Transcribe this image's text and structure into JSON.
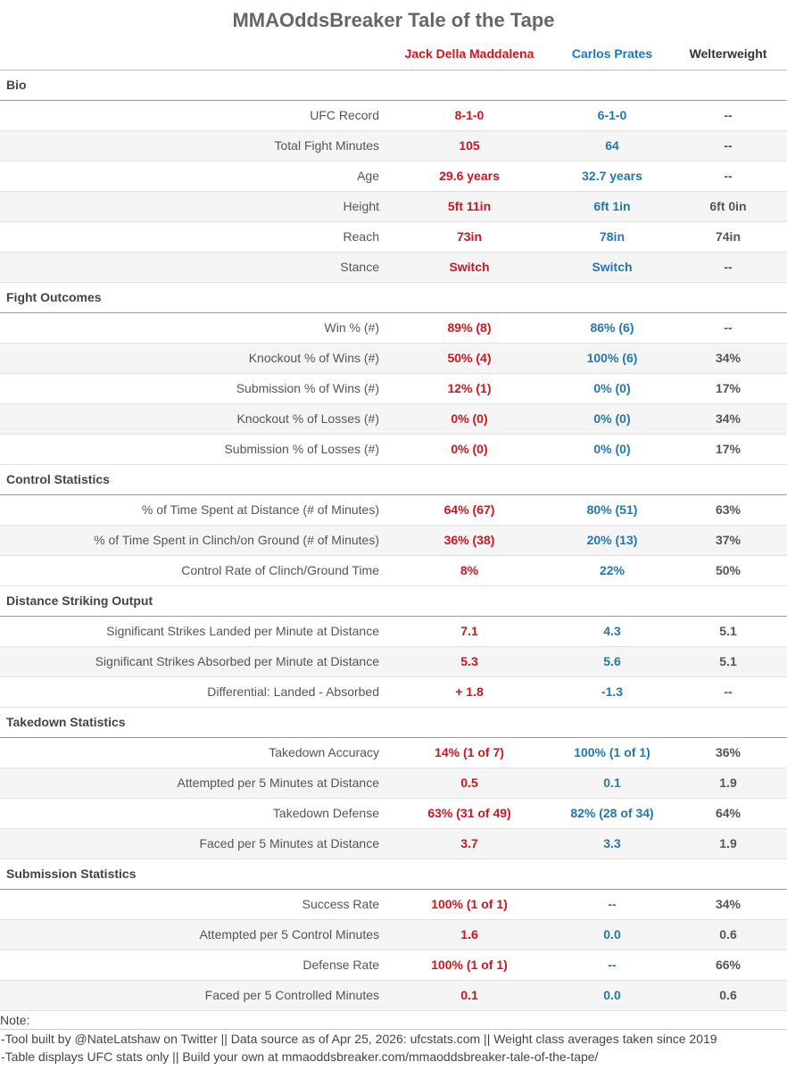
{
  "title": "MMAOddsBreaker Tale of the Tape",
  "columns": {
    "fighter1": "Jack Della Maddalena",
    "fighter2": "Carlos Prates",
    "weight_class": "Welterweight"
  },
  "colors": {
    "fighter1": "#d0161c",
    "fighter2": "#1f77b4"
  },
  "sections": [
    {
      "title": "Bio",
      "rows": [
        {
          "label": "UFC Record",
          "f1": "8-1-0",
          "f2": "6-1-0",
          "avg": "--"
        },
        {
          "label": "Total Fight Minutes",
          "f1": "105",
          "f2": "64",
          "avg": "--"
        },
        {
          "label": "Age",
          "f1": "29.6 years",
          "f2": "32.7 years",
          "avg": "--"
        },
        {
          "label": "Height",
          "f1": "5ft 11in",
          "f2": "6ft 1in",
          "avg": "6ft 0in"
        },
        {
          "label": "Reach",
          "f1": "73in",
          "f2": "78in",
          "avg": "74in"
        },
        {
          "label": "Stance",
          "f1": "Switch",
          "f2": "Switch",
          "avg": "--"
        }
      ]
    },
    {
      "title": "Fight Outcomes",
      "rows": [
        {
          "label": "Win % (#)",
          "f1": "89% (8)",
          "f2": "86% (6)",
          "avg": "--"
        },
        {
          "label": "Knockout % of Wins (#)",
          "f1": "50% (4)",
          "f2": "100% (6)",
          "avg": "34%"
        },
        {
          "label": "Submission % of Wins (#)",
          "f1": "12% (1)",
          "f2": "0% (0)",
          "avg": "17%"
        },
        {
          "label": "Knockout % of Losses (#)",
          "f1": "0% (0)",
          "f2": "0% (0)",
          "avg": "34%"
        },
        {
          "label": "Submission % of Losses (#)",
          "f1": "0% (0)",
          "f2": "0% (0)",
          "avg": "17%"
        }
      ]
    },
    {
      "title": "Control Statistics",
      "rows": [
        {
          "label": "% of Time Spent at Distance (# of Minutes)",
          "f1": "64% (67)",
          "f2": "80% (51)",
          "avg": "63%"
        },
        {
          "label": "% of Time Spent in Clinch/on Ground (# of Minutes)",
          "f1": "36% (38)",
          "f2": "20% (13)",
          "avg": "37%"
        },
        {
          "label": "Control Rate of Clinch/Ground Time",
          "f1": "8%",
          "f2": "22%",
          "avg": "50%"
        }
      ]
    },
    {
      "title": "Distance Striking Output",
      "rows": [
        {
          "label": "Significant Strikes Landed per Minute at Distance",
          "f1": "7.1",
          "f2": "4.3",
          "avg": "5.1"
        },
        {
          "label": "Significant Strikes Absorbed per Minute at Distance",
          "f1": "5.3",
          "f2": "5.6",
          "avg": "5.1"
        },
        {
          "label": "Differential: Landed - Absorbed",
          "f1": "+ 1.8",
          "f2": "-1.3",
          "avg": "--"
        }
      ]
    },
    {
      "title": "Takedown Statistics",
      "rows": [
        {
          "label": "Takedown Accuracy",
          "f1": "14% (1 of 7)",
          "f2": "100% (1 of 1)",
          "avg": "36%"
        },
        {
          "label": "Attempted per 5 Minutes at Distance",
          "f1": "0.5",
          "f2": "0.1",
          "avg": "1.9"
        },
        {
          "label": "Takedown Defense",
          "f1": "63% (31 of 49)",
          "f2": "82% (28 of 34)",
          "avg": "64%"
        },
        {
          "label": "Faced per 5 Minutes at Distance",
          "f1": "3.7",
          "f2": "3.3",
          "avg": "1.9"
        }
      ]
    },
    {
      "title": "Submission Statistics",
      "rows": [
        {
          "label": "Success Rate",
          "f1": "100% (1 of 1)",
          "f2": "--",
          "avg": "34%"
        },
        {
          "label": "Attempted per 5 Control Minutes",
          "f1": "1.6",
          "f2": "0.0",
          "avg": "0.6"
        },
        {
          "label": "Defense Rate",
          "f1": "100% (1 of 1)",
          "f2": "--",
          "avg": "66%"
        },
        {
          "label": "Faced per 5 Controlled Minutes",
          "f1": "0.1",
          "f2": "0.0",
          "avg": "0.6"
        }
      ]
    }
  ],
  "notes": {
    "heading": "Note:",
    "lines": [
      "-Tool built by @NateLatshaw on Twitter || Data source as of Apr 25, 2026: ufcstats.com || Weight class averages taken since 2019",
      "-Table displays UFC stats only || Build your own at mmaoddsbreaker.com/mmaoddsbreaker-tale-of-the-tape/"
    ]
  }
}
